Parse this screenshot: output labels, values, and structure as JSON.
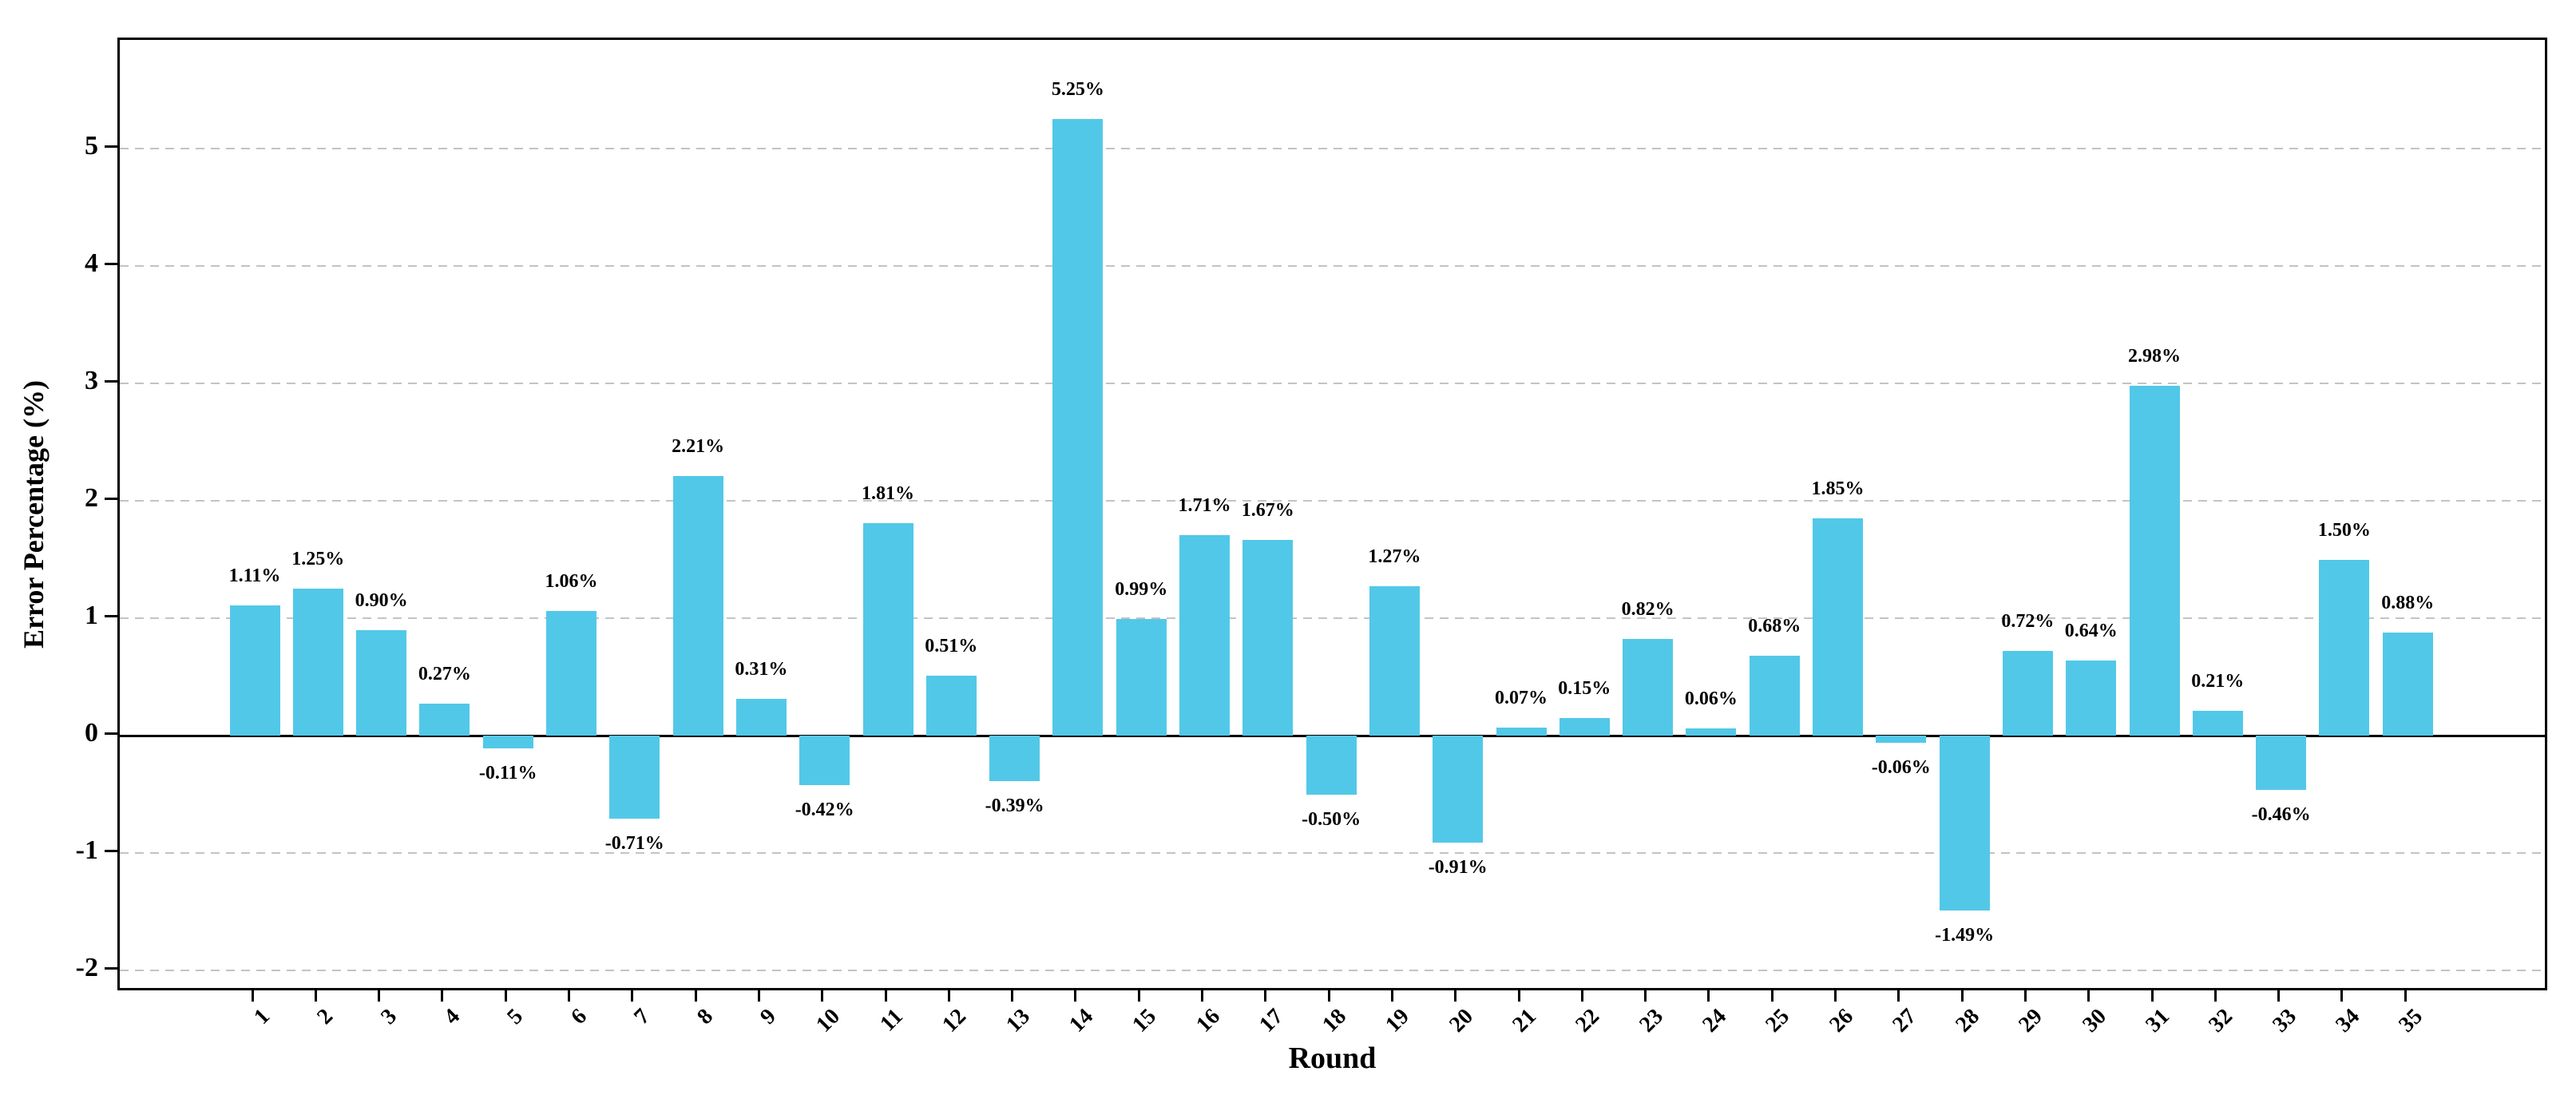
{
  "figure": {
    "background": "#ffffff"
  },
  "chart_data": {
    "type": "bar",
    "title": "",
    "xlabel": "Round",
    "ylabel": "Error Percentage (%)",
    "categories": [
      "1",
      "2",
      "3",
      "4",
      "5",
      "6",
      "7",
      "8",
      "9",
      "10",
      "11",
      "12",
      "13",
      "14",
      "15",
      "16",
      "17",
      "18",
      "19",
      "20",
      "21",
      "22",
      "23",
      "24",
      "25",
      "26",
      "27",
      "28",
      "29",
      "30",
      "31",
      "32",
      "33",
      "34",
      "35"
    ],
    "values": [
      1.11,
      1.25,
      0.9,
      0.27,
      -0.11,
      1.06,
      -0.71,
      2.21,
      0.31,
      -0.42,
      1.81,
      0.51,
      -0.39,
      5.25,
      0.99,
      1.71,
      1.67,
      -0.5,
      1.27,
      -0.91,
      0.07,
      0.15,
      0.82,
      0.06,
      0.68,
      1.85,
      -0.06,
      -1.49,
      0.72,
      0.64,
      2.98,
      0.21,
      -0.46,
      1.5,
      0.88
    ],
    "value_labels": [
      "1.11%",
      "1.25%",
      "0.90%",
      "0.27%",
      "-0.11%",
      "1.06%",
      "-0.71%",
      "2.21%",
      "0.31%",
      "-0.42%",
      "1.81%",
      "0.51%",
      "-0.39%",
      "5.25%",
      "0.99%",
      "1.71%",
      "1.67%",
      "-0.50%",
      "1.27%",
      "-0.91%",
      "0.07%",
      "0.15%",
      "0.82%",
      "0.06%",
      "0.68%",
      "1.85%",
      "-0.06%",
      "-1.49%",
      "0.72%",
      "0.64%",
      "2.98%",
      "0.21%",
      "-0.46%",
      "1.50%",
      "0.88%"
    ],
    "yticks": [
      "-2",
      "-1",
      "0",
      "1",
      "2",
      "3",
      "4",
      "5"
    ],
    "ylim": [
      -2.19,
      5.93
    ],
    "grid": "horizontal-dashed",
    "legend_position": "none",
    "colors": {
      "bar_fill": "#52c8e8",
      "gridline": "#c3c3c3",
      "axis": "#000000",
      "text": "#000000"
    }
  }
}
